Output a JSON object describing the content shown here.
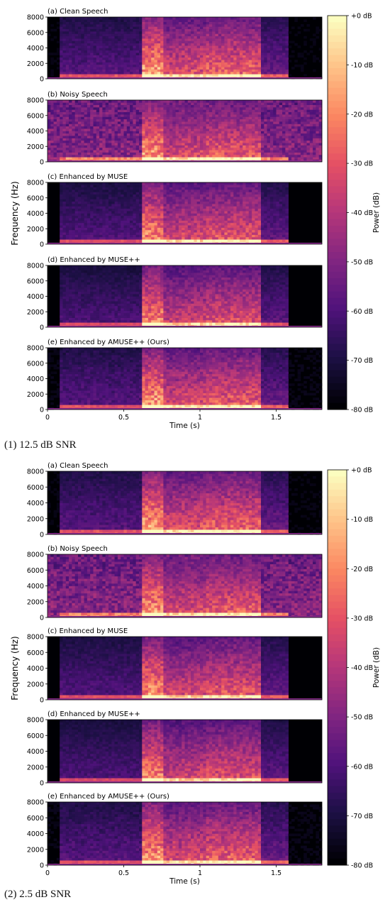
{
  "palette": [
    "#000004",
    "#1c1044",
    "#4f127b",
    "#812581",
    "#b5367a",
    "#e55064",
    "#fb8761",
    "#fec287",
    "#fcfdbf"
  ],
  "figures": [
    {
      "caption": "(1) 12.5 dB SNR",
      "chart_data": {
        "type": "heatmap",
        "ylabel": "Frequency (Hz)",
        "xlabel": "Time (s)",
        "xticks": [
          "0",
          "0.5",
          "1",
          "1.5"
        ],
        "xlim": [
          0,
          1.8
        ],
        "ylim": [
          0,
          8000
        ],
        "yticks": [
          "0",
          "2000",
          "4000",
          "6000",
          "8000"
        ],
        "colorbar": {
          "label": "Power (dB)",
          "range": [
            -80,
            0
          ],
          "ticks": [
            "+0 dB",
            "-10 dB",
            "-20 dB",
            "-30 dB",
            "-40 dB",
            "-50 dB",
            "-60 dB",
            "-70 dB",
            "-80 dB"
          ]
        },
        "panels": [
          {
            "title": "(a) Clean Speech",
            "kind": "clean"
          },
          {
            "title": "(b) Noisy Speech",
            "kind": "noisy"
          },
          {
            "title": "(c) Enhanced by MUSE",
            "kind": "muse"
          },
          {
            "title": "(d) Enhanced by MUSE++",
            "kind": "musepp"
          },
          {
            "title": "(e) Enhanced by AMUSE++ (Ours)",
            "kind": "amuse"
          }
        ]
      }
    },
    {
      "caption": "(2) 2.5 dB SNR",
      "chart_data": {
        "type": "heatmap",
        "ylabel": "Frequency (Hz)",
        "xlabel": "Time (s)",
        "xticks": [
          "0",
          "0.5",
          "1",
          "1.5"
        ],
        "xlim": [
          0,
          1.8
        ],
        "ylim": [
          0,
          8000
        ],
        "yticks": [
          "0",
          "2000",
          "4000",
          "6000",
          "8000"
        ],
        "colorbar": {
          "label": "Power (dB)",
          "range": [
            -80,
            0
          ],
          "ticks": [
            "+0 dB",
            "-10 dB",
            "-20 dB",
            "-30 dB",
            "-40 dB",
            "-50 dB",
            "-60 dB",
            "-70 dB",
            "-80 dB"
          ]
        },
        "panels": [
          {
            "title": "(a) Clean Speech",
            "kind": "clean"
          },
          {
            "title": "(b) Noisy Speech",
            "kind": "noisy"
          },
          {
            "title": "(c) Enhanced by MUSE",
            "kind": "muse"
          },
          {
            "title": "(d) Enhanced by MUSE++",
            "kind": "musepp"
          },
          {
            "title": "(e) Enhanced by AMUSE++ (Ours)",
            "kind": "amuse"
          }
        ]
      }
    }
  ]
}
